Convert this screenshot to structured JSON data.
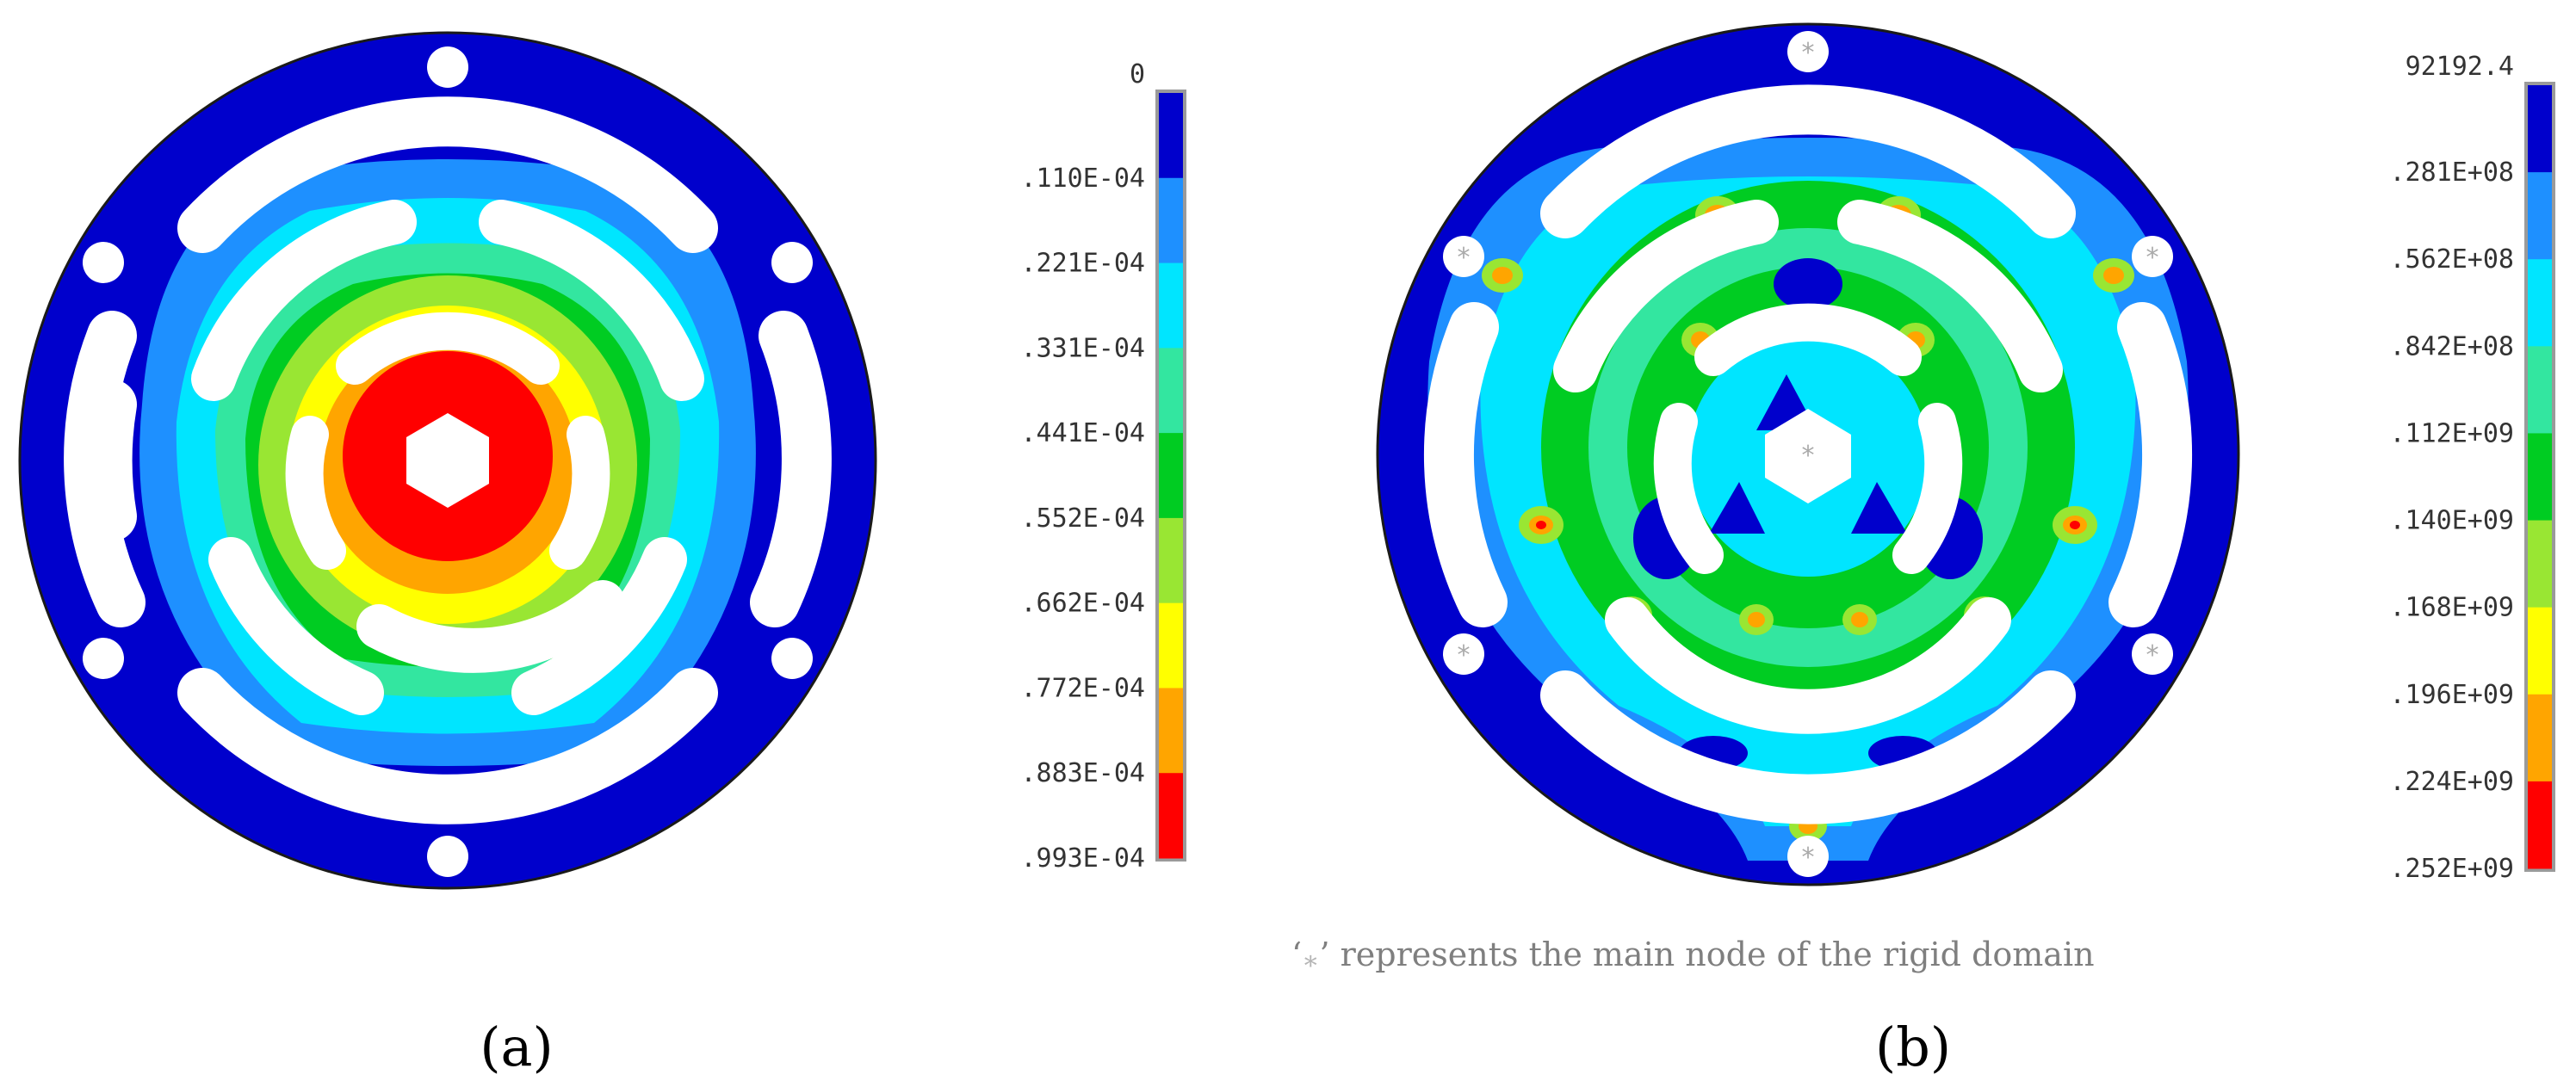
{
  "colors": {
    "scale": [
      "#0000cc",
      "#1e90ff",
      "#00e5ff",
      "#33e6a0",
      "#00cc22",
      "#99e633",
      "#ffff00",
      "#ffa500",
      "#ff0000"
    ],
    "outline": "#1a1a1a",
    "holes": "#ffffff",
    "node_marker": "#aaaaaa"
  },
  "panel_a": {
    "label": "(a)",
    "colorbar_labels": [
      "0",
      ".110E-04",
      ".221E-04",
      ".331E-04",
      ".441E-04",
      ".552E-04",
      ".662E-04",
      ".772E-04",
      ".883E-04",
      ".993E-04"
    ]
  },
  "panel_b": {
    "label": "(b)",
    "colorbar_labels": [
      "92192.4",
      ".281E+08",
      ".562E+08",
      ".842E+08",
      ".112E+09",
      ".140E+09",
      ".168E+09",
      ".196E+09",
      ".224E+09",
      ".252E+09"
    ],
    "caption_open": "‘",
    "caption_star": "∗",
    "caption_rest": "’ represents the main node of the rigid domain",
    "node_symbol": "*"
  }
}
